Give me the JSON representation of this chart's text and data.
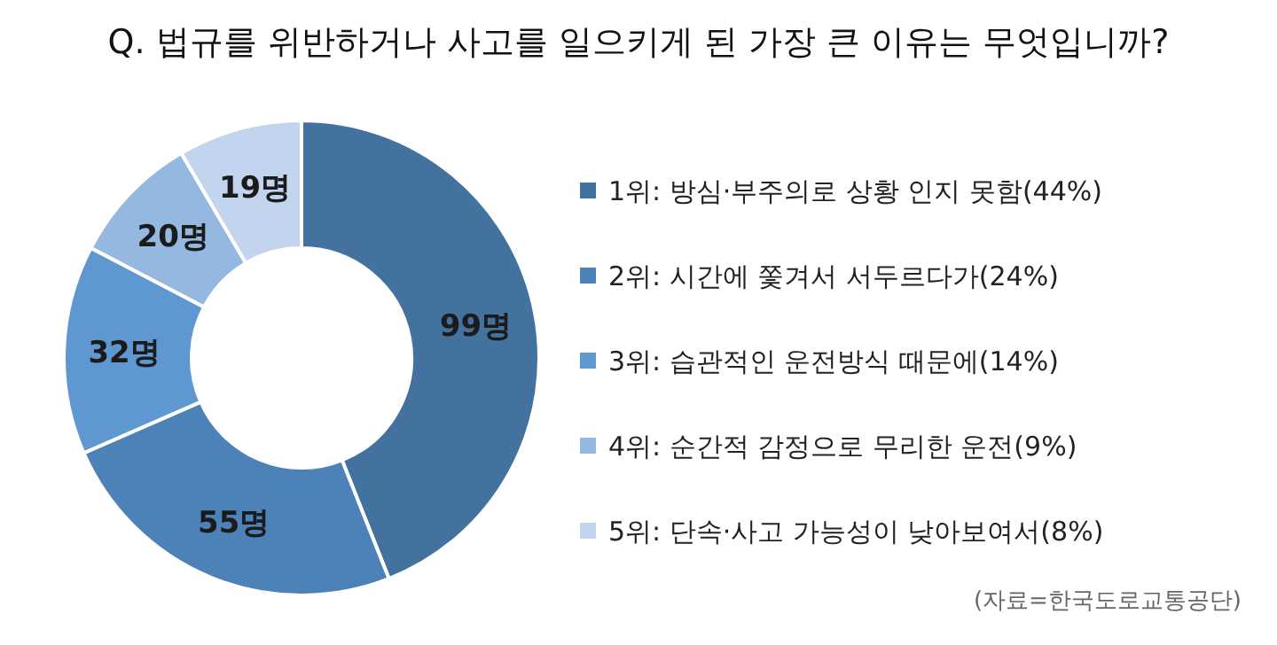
{
  "chart_data": {
    "type": "donut",
    "title": "Q. 법규를 위반하거나 사고를 일으키게 된 가장 큰 이유는 무엇입니까?",
    "categories": [
      "1위: 방심·부주의로 상황 인지 못함(44%)",
      "2위: 시간에 쫓겨서 서두르다가(24%)",
      "3위: 습관적인 운전방식 때문에(14%)",
      "4위: 순간적 감정으로 무리한 운전(9%)",
      "5위: 단속·사고 가능성이 낮아보여서(8%)"
    ],
    "values": [
      99,
      55,
      32,
      20,
      19
    ],
    "value_labels": [
      "99명",
      "55명",
      "32명",
      "20명",
      "19명"
    ],
    "colors": [
      "#44729f",
      "#4d82b8",
      "#5f97d1",
      "#94b8df",
      "#c3d5ee"
    ],
    "legend": "right",
    "annotations": [
      "(자료=한국도로교통공단)"
    ]
  }
}
